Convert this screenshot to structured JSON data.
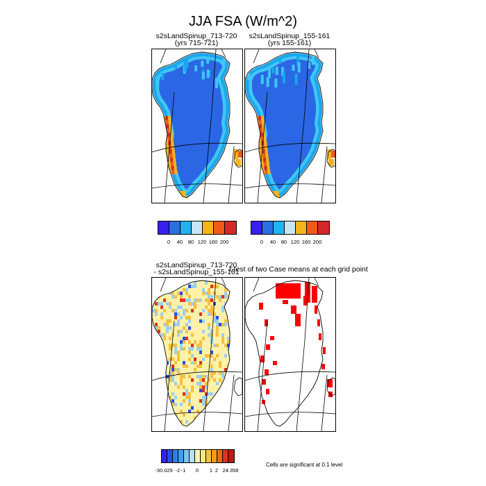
{
  "title": "JJA FSA (W/m^2)",
  "panels": {
    "p1": {
      "title": "s2sLandSpinup_713-720",
      "subtitle": "(yrs 715-721)"
    },
    "p2": {
      "title": "s2sLandSpinup_155-161",
      "subtitle": "(yrs 155-161)"
    },
    "p3": {
      "title": "s2sLandSpinup_713-720",
      "subtitle": "- s2sLandSpinup_155-161"
    },
    "p4": {
      "title": "t-test of two Case means at each grid point",
      "subtitle": ""
    }
  },
  "colorbars": {
    "abs": {
      "colors": [
        "#3a1ff2",
        "#2a6fe0",
        "#1fb4f0",
        "#c8e6f7",
        "#f5b41a",
        "#f25a1a",
        "#d42828"
      ],
      "labels": [
        "0",
        "40",
        "80",
        "120",
        "160",
        "200"
      ]
    },
    "diff": {
      "colors": [
        "#3a1ff2",
        "#2a4fe8",
        "#2f7de8",
        "#3aa0f0",
        "#7cc4f4",
        "#b8def8",
        "#fff5b8",
        "#ffe680",
        "#f7c040",
        "#f59a1a",
        "#ee6a1a",
        "#e0321e",
        "#c01818"
      ],
      "labels": [
        "-30.029",
        "-2",
        "-1",
        "0",
        "1",
        "2",
        "24.358"
      ]
    }
  },
  "note": "Cells are significant at 0.1 level",
  "map_colors": {
    "interior": "#2b66e4",
    "coast_mid": "#1aa6ec",
    "coast_light": "#3fc6f6",
    "west_warm": "#f5b41a",
    "west_hot": "#f25a1a",
    "west_red": "#d42828",
    "diff_base": "#fff2a8",
    "diff_pos": "#f7c040",
    "diff_neg": "#9cd0f4",
    "signif": "#ff0000"
  }
}
